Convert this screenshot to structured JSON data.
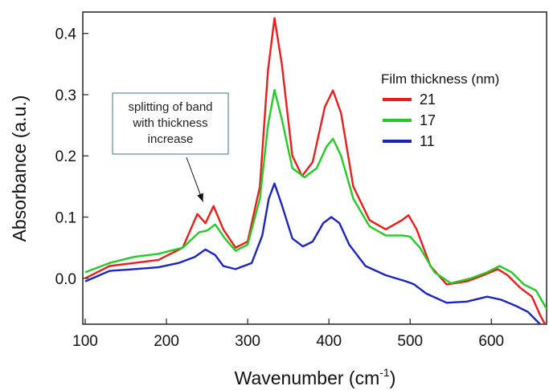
{
  "chart_data": {
    "type": "line",
    "xlabel": "Wavenumber (cm",
    "xlabel_sup": "-1",
    "xlabel_close": ")",
    "ylabel": "Absorbance (a.u.)",
    "xlim": [
      97,
      668
    ],
    "ylim": [
      -0.075,
      0.435
    ],
    "xticks": [
      100,
      200,
      300,
      400,
      500,
      600
    ],
    "yticks": [
      0.0,
      0.1,
      0.2,
      0.3,
      0.4
    ],
    "ytick_labels": [
      "0.0",
      "0.1",
      "0.2",
      "0.3",
      "0.4"
    ],
    "legend": {
      "title": "Film thickness (nm)",
      "placement": "top-right"
    },
    "annotation": {
      "lines": [
        "splitting of band",
        "with thickness",
        "increase"
      ],
      "arrow_to": [
        245,
        0.125
      ]
    },
    "series": [
      {
        "name": "21",
        "color": "#ee1b1b",
        "points": [
          [
            100,
            0.0
          ],
          [
            130,
            0.02
          ],
          [
            160,
            0.025
          ],
          [
            190,
            0.03
          ],
          [
            220,
            0.05
          ],
          [
            238,
            0.105
          ],
          [
            248,
            0.09
          ],
          [
            258,
            0.118
          ],
          [
            270,
            0.08
          ],
          [
            285,
            0.05
          ],
          [
            300,
            0.06
          ],
          [
            315,
            0.15
          ],
          [
            325,
            0.34
          ],
          [
            333,
            0.425
          ],
          [
            342,
            0.35
          ],
          [
            355,
            0.2
          ],
          [
            367,
            0.167
          ],
          [
            380,
            0.19
          ],
          [
            395,
            0.28
          ],
          [
            405,
            0.307
          ],
          [
            415,
            0.27
          ],
          [
            430,
            0.15
          ],
          [
            450,
            0.095
          ],
          [
            470,
            0.08
          ],
          [
            490,
            0.095
          ],
          [
            498,
            0.103
          ],
          [
            508,
            0.08
          ],
          [
            525,
            0.02
          ],
          [
            545,
            -0.01
          ],
          [
            570,
            -0.005
          ],
          [
            590,
            0.005
          ],
          [
            608,
            0.015
          ],
          [
            620,
            0.005
          ],
          [
            635,
            -0.015
          ],
          [
            650,
            -0.03
          ],
          [
            660,
            -0.06
          ],
          [
            666,
            -0.075
          ]
        ]
      },
      {
        "name": "17",
        "color": "#22cc22",
        "points": [
          [
            100,
            0.01
          ],
          [
            130,
            0.025
          ],
          [
            160,
            0.035
          ],
          [
            190,
            0.04
          ],
          [
            220,
            0.05
          ],
          [
            240,
            0.075
          ],
          [
            250,
            0.078
          ],
          [
            260,
            0.088
          ],
          [
            272,
            0.065
          ],
          [
            285,
            0.045
          ],
          [
            300,
            0.055
          ],
          [
            315,
            0.13
          ],
          [
            325,
            0.25
          ],
          [
            333,
            0.308
          ],
          [
            342,
            0.26
          ],
          [
            355,
            0.18
          ],
          [
            370,
            0.165
          ],
          [
            385,
            0.18
          ],
          [
            397,
            0.215
          ],
          [
            405,
            0.228
          ],
          [
            415,
            0.2
          ],
          [
            430,
            0.13
          ],
          [
            450,
            0.085
          ],
          [
            470,
            0.07
          ],
          [
            490,
            0.07
          ],
          [
            500,
            0.068
          ],
          [
            512,
            0.05
          ],
          [
            530,
            0.01
          ],
          [
            550,
            -0.008
          ],
          [
            575,
            0.0
          ],
          [
            595,
            0.01
          ],
          [
            610,
            0.02
          ],
          [
            625,
            0.01
          ],
          [
            640,
            -0.01
          ],
          [
            655,
            -0.02
          ],
          [
            668,
            -0.05
          ]
        ]
      },
      {
        "name": "11",
        "color": "#1a24c0",
        "points": [
          [
            100,
            -0.005
          ],
          [
            130,
            0.012
          ],
          [
            160,
            0.015
          ],
          [
            190,
            0.018
          ],
          [
            215,
            0.025
          ],
          [
            235,
            0.035
          ],
          [
            248,
            0.047
          ],
          [
            260,
            0.038
          ],
          [
            270,
            0.02
          ],
          [
            285,
            0.015
          ],
          [
            305,
            0.025
          ],
          [
            318,
            0.07
          ],
          [
            326,
            0.13
          ],
          [
            333,
            0.155
          ],
          [
            342,
            0.12
          ],
          [
            355,
            0.065
          ],
          [
            368,
            0.052
          ],
          [
            380,
            0.06
          ],
          [
            393,
            0.09
          ],
          [
            403,
            0.1
          ],
          [
            413,
            0.09
          ],
          [
            425,
            0.055
          ],
          [
            445,
            0.02
          ],
          [
            470,
            0.005
          ],
          [
            495,
            -0.005
          ],
          [
            505,
            -0.01
          ],
          [
            520,
            -0.025
          ],
          [
            545,
            -0.04
          ],
          [
            570,
            -0.038
          ],
          [
            595,
            -0.03
          ],
          [
            612,
            -0.035
          ],
          [
            630,
            -0.045
          ],
          [
            645,
            -0.055
          ],
          [
            660,
            -0.075
          ]
        ]
      }
    ]
  }
}
